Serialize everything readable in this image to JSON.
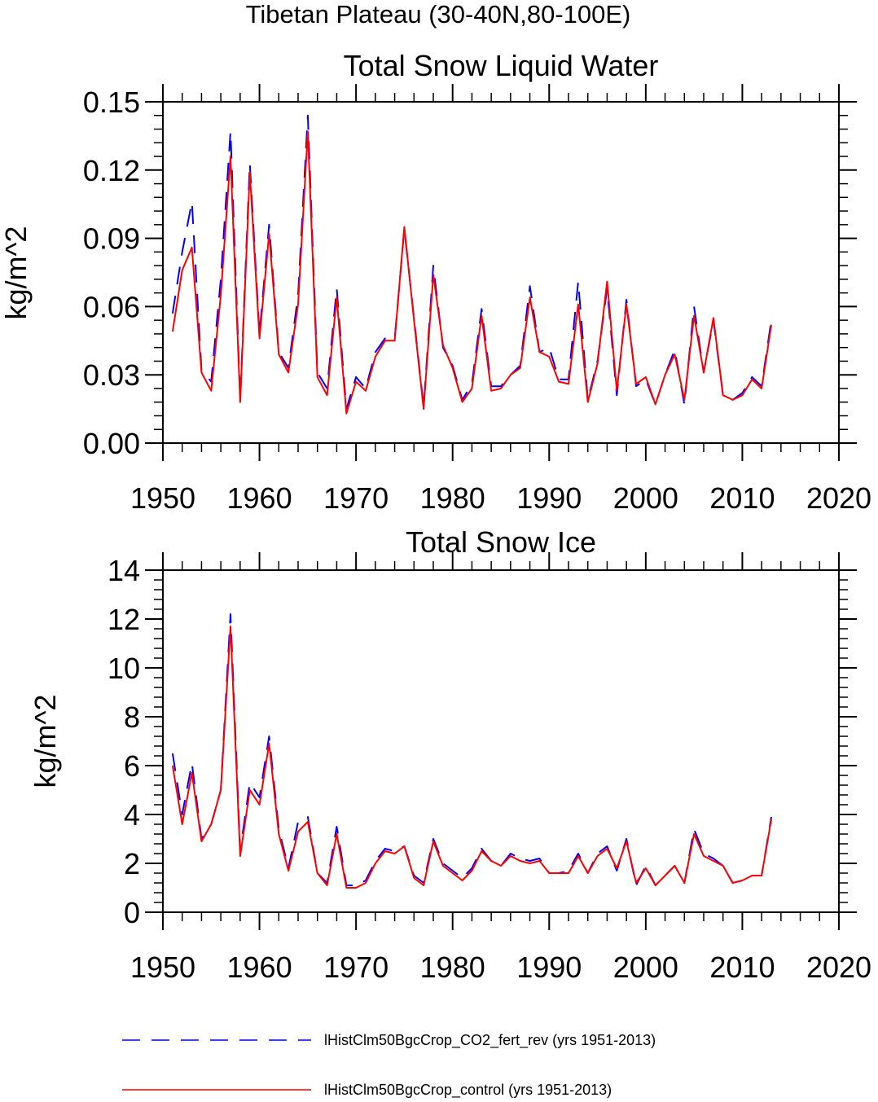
{
  "figure": {
    "suptitle": "Tibetan Plateau (30-40N,80-100E)"
  },
  "series_styles": [
    {
      "name": "lHistClm50BgcCrop_CO2_fert_rev (yrs 1951-2013)",
      "color": "#0000ff",
      "dash": "dashed"
    },
    {
      "name": "lHistClm50BgcCrop_control (yrs 1951-2013)",
      "color": "#ff0000",
      "dash": "solid"
    }
  ],
  "chart_data": [
    {
      "type": "line",
      "title": "Total Snow Liquid Water",
      "xlabel": "",
      "ylabel": "kg/m^2",
      "xlim": [
        1950,
        2020
      ],
      "ylim": [
        0,
        0.15
      ],
      "xticks": [
        "1950",
        "1960",
        "1970",
        "1980",
        "1990",
        "2000",
        "2010",
        "2020"
      ],
      "yticks": [
        "0.00",
        "0.03",
        "0.06",
        "0.09",
        "0.12",
        "0.15"
      ],
      "x": [
        1951,
        1952,
        1953,
        1954,
        1955,
        1956,
        1957,
        1958,
        1959,
        1960,
        1961,
        1962,
        1963,
        1964,
        1965,
        1966,
        1967,
        1968,
        1969,
        1970,
        1971,
        1972,
        1973,
        1974,
        1975,
        1976,
        1977,
        1978,
        1979,
        1980,
        1981,
        1982,
        1983,
        1984,
        1985,
        1986,
        1987,
        1988,
        1989,
        1990,
        1991,
        1992,
        1993,
        1994,
        1995,
        1996,
        1997,
        1998,
        1999,
        2000,
        2001,
        2002,
        2003,
        2004,
        2005,
        2006,
        2007,
        2008,
        2009,
        2010,
        2011,
        2012,
        2013
      ],
      "series": [
        {
          "name": "lHistClm50BgcCrop_CO2_fert_rev (yrs 1951-2013)",
          "values": [
            0.057,
            0.084,
            0.106,
            0.032,
            0.027,
            0.072,
            0.137,
            0.019,
            0.123,
            0.048,
            0.096,
            0.04,
            0.033,
            0.065,
            0.144,
            0.031,
            0.024,
            0.068,
            0.015,
            0.029,
            0.024,
            0.04,
            0.046,
            0.046,
            0.094,
            0.055,
            0.016,
            0.078,
            0.042,
            0.034,
            0.019,
            0.026,
            0.059,
            0.025,
            0.025,
            0.03,
            0.034,
            0.069,
            0.04,
            0.042,
            0.028,
            0.028,
            0.071,
            0.019,
            0.036,
            0.068,
            0.021,
            0.063,
            0.025,
            0.028,
            0.017,
            0.03,
            0.041,
            0.017,
            0.06,
            0.031,
            0.054,
            0.021,
            0.019,
            0.022,
            0.029,
            0.025,
            0.054
          ]
        },
        {
          "name": "lHistClm50BgcCrop_control (yrs 1951-2013)",
          "values": [
            0.049,
            0.076,
            0.086,
            0.031,
            0.023,
            0.065,
            0.126,
            0.018,
            0.119,
            0.046,
            0.092,
            0.039,
            0.031,
            0.061,
            0.137,
            0.029,
            0.021,
            0.064,
            0.013,
            0.027,
            0.023,
            0.038,
            0.045,
            0.045,
            0.095,
            0.054,
            0.015,
            0.074,
            0.043,
            0.033,
            0.018,
            0.024,
            0.056,
            0.023,
            0.024,
            0.03,
            0.033,
            0.064,
            0.04,
            0.038,
            0.027,
            0.026,
            0.061,
            0.018,
            0.035,
            0.071,
            0.023,
            0.061,
            0.026,
            0.029,
            0.017,
            0.03,
            0.039,
            0.019,
            0.056,
            0.031,
            0.055,
            0.021,
            0.019,
            0.021,
            0.028,
            0.024,
            0.052
          ]
        }
      ]
    },
    {
      "type": "line",
      "title": "Total Snow Ice",
      "xlabel": "",
      "ylabel": "kg/m^2",
      "xlim": [
        1950,
        2020
      ],
      "ylim": [
        0,
        14
      ],
      "xticks": [
        "1950",
        "1960",
        "1970",
        "1980",
        "1990",
        "2000",
        "2010",
        "2020"
      ],
      "yticks": [
        "0",
        "2",
        "4",
        "6",
        "8",
        "10",
        "12",
        "14"
      ],
      "x": [
        1951,
        1952,
        1953,
        1954,
        1955,
        1956,
        1957,
        1958,
        1959,
        1960,
        1961,
        1962,
        1963,
        1964,
        1965,
        1966,
        1967,
        1968,
        1969,
        1970,
        1971,
        1972,
        1973,
        1974,
        1975,
        1976,
        1977,
        1978,
        1979,
        1980,
        1981,
        1982,
        1983,
        1984,
        1985,
        1986,
        1987,
        1988,
        1989,
        1990,
        1991,
        1992,
        1993,
        1994,
        1995,
        1996,
        1997,
        1998,
        1999,
        2000,
        2001,
        2002,
        2003,
        2004,
        2005,
        2006,
        2007,
        2008,
        2009,
        2010,
        2011,
        2012,
        2013
      ],
      "series": [
        {
          "name": "lHistClm50BgcCrop_CO2_fert_rev (yrs 1951-2013)",
          "values": [
            6.5,
            4.0,
            6.1,
            3.0,
            3.6,
            5.0,
            12.2,
            2.5,
            5.3,
            4.7,
            7.2,
            3.4,
            1.8,
            3.7,
            3.9,
            1.6,
            1.2,
            3.5,
            1.1,
            1.1,
            1.3,
            2.1,
            2.6,
            2.5,
            2.7,
            1.5,
            1.2,
            3.0,
            2.0,
            1.7,
            1.4,
            1.8,
            2.6,
            2.1,
            1.9,
            2.4,
            2.2,
            2.1,
            2.2,
            1.6,
            1.6,
            1.7,
            2.4,
            1.6,
            2.4,
            2.7,
            1.7,
            3.0,
            1.1,
            1.9,
            1.1,
            1.5,
            1.9,
            1.2,
            3.4,
            2.4,
            2.2,
            1.9,
            1.2,
            1.3,
            1.5,
            1.5,
            3.9
          ]
        },
        {
          "name": "lHistClm50BgcCrop_control (yrs 1951-2013)",
          "values": [
            6.0,
            3.6,
            5.7,
            2.9,
            3.6,
            5.0,
            11.7,
            2.3,
            5.0,
            4.4,
            6.9,
            3.2,
            1.7,
            3.3,
            3.7,
            1.6,
            1.1,
            3.2,
            1.0,
            1.0,
            1.2,
            2.0,
            2.5,
            2.4,
            2.7,
            1.4,
            1.1,
            2.9,
            1.9,
            1.6,
            1.3,
            1.7,
            2.5,
            2.1,
            1.9,
            2.3,
            2.1,
            2.0,
            2.1,
            1.6,
            1.6,
            1.6,
            2.3,
            1.6,
            2.3,
            2.6,
            1.8,
            2.9,
            1.2,
            1.8,
            1.1,
            1.5,
            1.9,
            1.2,
            3.2,
            2.3,
            2.1,
            1.9,
            1.2,
            1.3,
            1.5,
            1.5,
            3.8
          ]
        }
      ]
    }
  ]
}
